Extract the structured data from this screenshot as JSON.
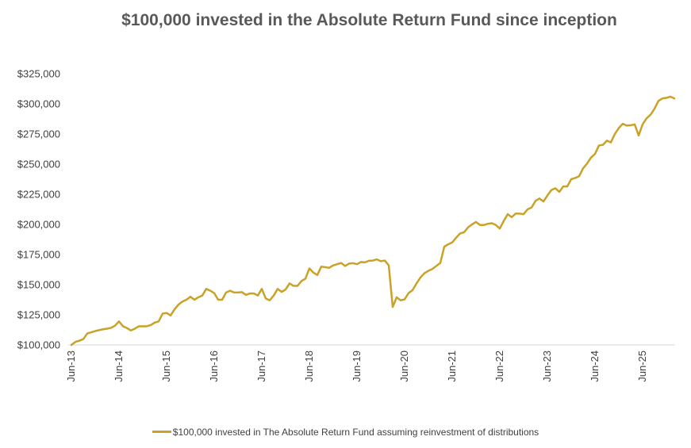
{
  "chart_data": {
    "type": "line",
    "title": "$100,000 invested in the Absolute Return Fund since inception",
    "xlabel": "",
    "ylabel": "",
    "ylim": [
      100000,
      325000
    ],
    "y_ticks": [
      "$100,000",
      "$125,000",
      "$150,000",
      "$175,000",
      "$200,000",
      "$225,000",
      "$250,000",
      "$275,000",
      "$300,000",
      "$325,000"
    ],
    "y_tick_values": [
      100000,
      125000,
      150000,
      175000,
      200000,
      225000,
      250000,
      275000,
      300000,
      325000
    ],
    "x_ticks": [
      "Jun-13",
      "Jun-14",
      "Jun-15",
      "Jun-16",
      "Jun-17",
      "Jun-18",
      "Jun-19",
      "Jun-20",
      "Jun-21",
      "Jun-22",
      "Jun-23",
      "Jun-24",
      "Jun-25"
    ],
    "x_start": "Jun-13",
    "x_end": "Nov-25",
    "grid": false,
    "legend_position": "bottom",
    "color": "#C9A227",
    "series": [
      {
        "name": "$100,000 invested in The Absolute Return Fund assuming reinvestment of distributions",
        "values": [
          100000,
          102500,
          103500,
          104800,
          109500,
          110500,
          111500,
          112300,
          113000,
          113500,
          114200,
          116000,
          119500,
          115500,
          114000,
          112000,
          113500,
          115500,
          115500,
          115500,
          116500,
          118500,
          119500,
          126000,
          126500,
          124500,
          129500,
          133500,
          136000,
          137500,
          140000,
          137500,
          139500,
          141000,
          146500,
          145000,
          143000,
          137500,
          137500,
          143500,
          145000,
          143500,
          143500,
          143800,
          141500,
          142700,
          142700,
          141000,
          146500,
          138500,
          137000,
          141000,
          146500,
          144000,
          146000,
          151000,
          149000,
          149000,
          153000,
          155000,
          163500,
          160000,
          158000,
          165000,
          164500,
          164000,
          166000,
          167000,
          168000,
          165500,
          167500,
          167800,
          167000,
          168800,
          168500,
          169800,
          170000,
          171000,
          169500,
          170000,
          166000,
          131500,
          139500,
          137000,
          137800,
          143000,
          145500,
          151000,
          156000,
          159500,
          161500,
          163000,
          165500,
          168000,
          181500,
          183500,
          185000,
          189000,
          192500,
          193500,
          197500,
          200000,
          202000,
          199500,
          199500,
          200500,
          201000,
          199500,
          196500,
          203000,
          208500,
          206000,
          209000,
          209000,
          208500,
          212500,
          214000,
          219500,
          221500,
          219000,
          224000,
          228500,
          230000,
          227000,
          231500,
          231500,
          237500,
          238500,
          240000,
          246500,
          250500,
          255500,
          258500,
          265500,
          266000,
          269500,
          268000,
          275000,
          280000,
          283500,
          282000,
          282200,
          283000,
          273800,
          283000,
          288000,
          291000,
          296000,
          302500,
          304500,
          305000,
          306000,
          304500
        ]
      }
    ]
  }
}
